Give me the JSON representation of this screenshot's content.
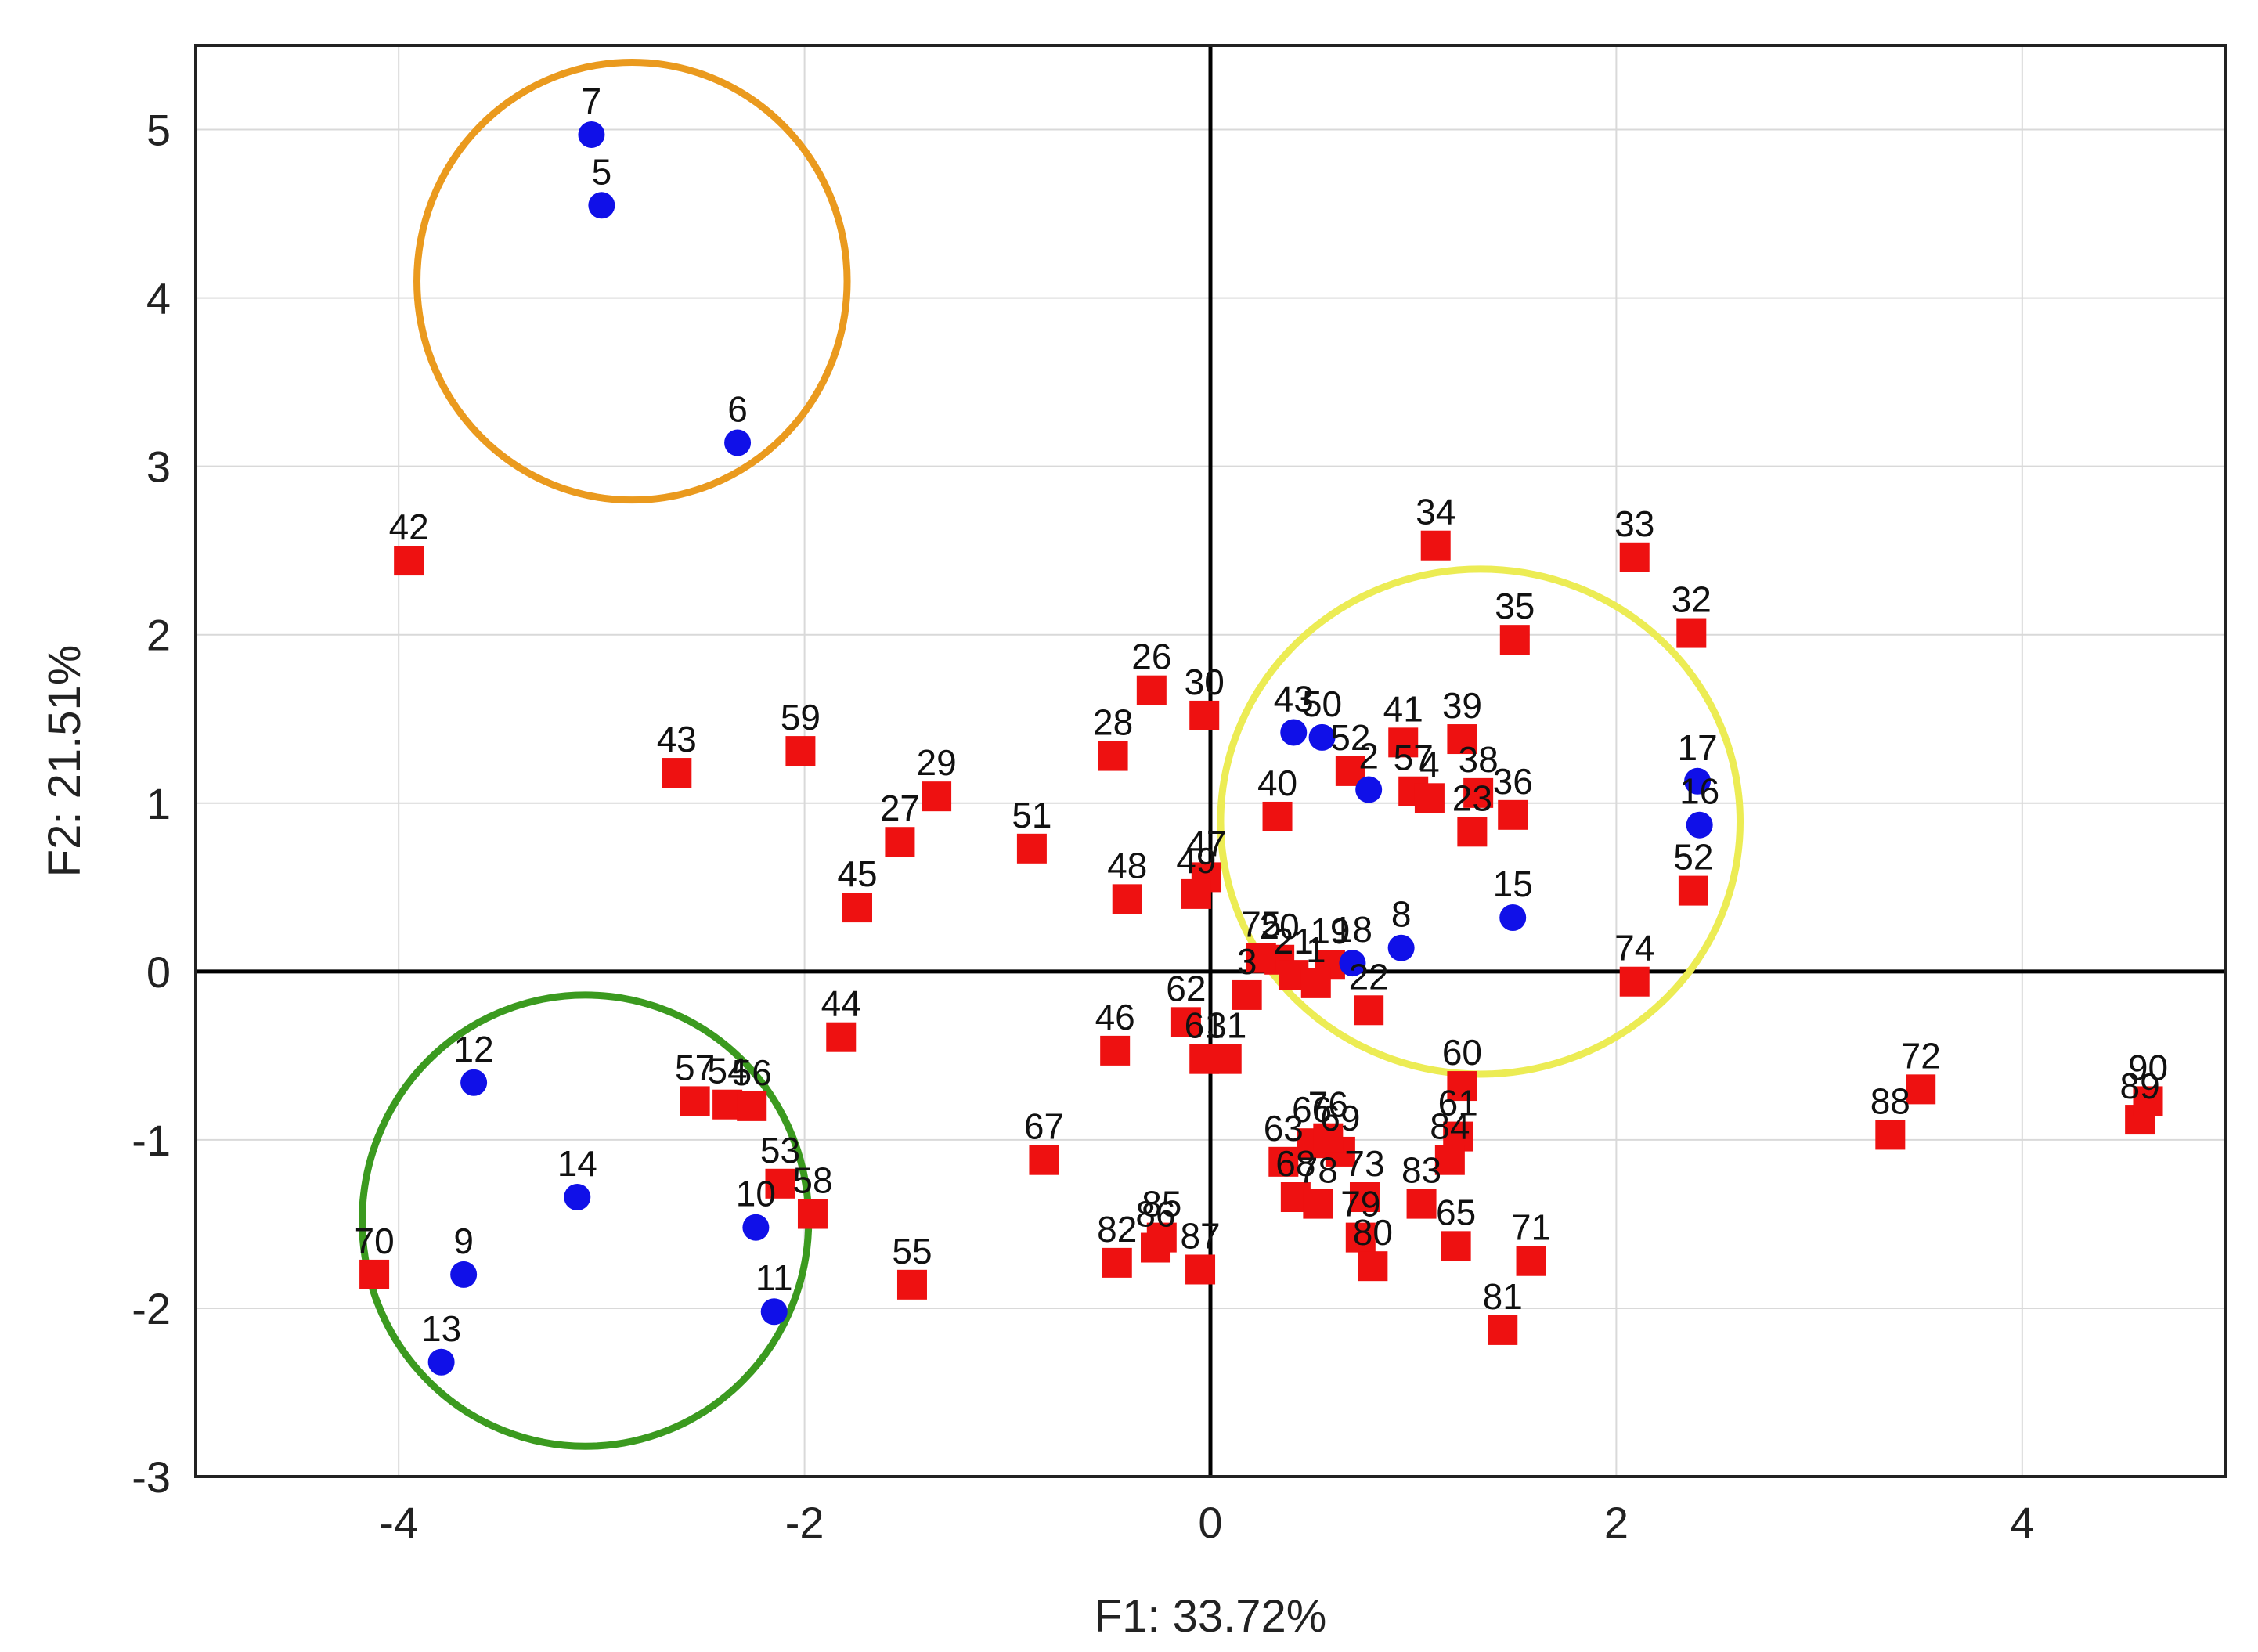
{
  "chart_data": {
    "type": "scatter",
    "title": "",
    "xlabel": "F1: 33.72%",
    "ylabel": "F2: 21.51%",
    "xlim": [
      -5,
      5
    ],
    "ylim": [
      -3,
      5.5
    ],
    "x_ticks": [
      -4,
      -2,
      0,
      2,
      4
    ],
    "y_ticks": [
      -3,
      -2,
      -1,
      0,
      1,
      2,
      3,
      4,
      5
    ],
    "grid": true,
    "colors": {
      "circle_series": "#1010e8",
      "square_series": "#ee1111"
    },
    "series": [
      {
        "name": "circles",
        "marker": "circle",
        "points": [
          {
            "label": "7",
            "x": -3.05,
            "y": 4.97
          },
          {
            "label": "5",
            "x": -3.0,
            "y": 4.55
          },
          {
            "label": "6",
            "x": -2.33,
            "y": 3.14
          },
          {
            "label": "12",
            "x": -3.63,
            "y": -0.66
          },
          {
            "label": "14",
            "x": -3.12,
            "y": -1.34
          },
          {
            "label": "9",
            "x": -3.68,
            "y": -1.8
          },
          {
            "label": "13",
            "x": -3.79,
            "y": -2.32
          },
          {
            "label": "10",
            "x": -2.24,
            "y": -1.52
          },
          {
            "label": "11",
            "x": -2.15,
            "y": -2.02
          },
          {
            "label": "43",
            "x": 0.41,
            "y": 1.42
          },
          {
            "label": "50",
            "x": 0.55,
            "y": 1.39
          },
          {
            "label": "2",
            "x": 0.78,
            "y": 1.08
          },
          {
            "label": "17",
            "x": 2.4,
            "y": 1.13
          },
          {
            "label": "16",
            "x": 2.41,
            "y": 0.87
          },
          {
            "label": "15",
            "x": 1.49,
            "y": 0.32
          },
          {
            "label": "18",
            "x": 0.7,
            "y": 0.05
          },
          {
            "label": "8",
            "x": 0.94,
            "y": 0.14
          }
        ]
      },
      {
        "name": "squares",
        "marker": "square",
        "points": [
          {
            "label": "42",
            "x": -3.95,
            "y": 2.44
          },
          {
            "label": "43",
            "x": -2.63,
            "y": 1.18
          },
          {
            "label": "59",
            "x": -2.02,
            "y": 1.31
          },
          {
            "label": "29",
            "x": -1.35,
            "y": 1.04
          },
          {
            "label": "27",
            "x": -1.53,
            "y": 0.77
          },
          {
            "label": "45",
            "x": -1.74,
            "y": 0.38
          },
          {
            "label": "51",
            "x": -0.88,
            "y": 0.73
          },
          {
            "label": "28",
            "x": -0.48,
            "y": 1.28
          },
          {
            "label": "26",
            "x": -0.29,
            "y": 1.67
          },
          {
            "label": "30",
            "x": -0.03,
            "y": 1.52
          },
          {
            "label": "48",
            "x": -0.41,
            "y": 0.43
          },
          {
            "label": "47",
            "x": -0.02,
            "y": 0.56
          },
          {
            "label": "49",
            "x": -0.07,
            "y": 0.46
          },
          {
            "label": "40",
            "x": 0.33,
            "y": 0.92
          },
          {
            "label": "41",
            "x": 0.95,
            "y": 1.36
          },
          {
            "label": "39",
            "x": 1.24,
            "y": 1.38
          },
          {
            "label": "34",
            "x": 1.11,
            "y": 2.53
          },
          {
            "label": "33",
            "x": 2.09,
            "y": 2.46
          },
          {
            "label": "35",
            "x": 1.5,
            "y": 1.97
          },
          {
            "label": "32",
            "x": 2.37,
            "y": 2.01
          },
          {
            "label": "52",
            "x": 0.69,
            "y": 1.19
          },
          {
            "label": "57",
            "x": 1.0,
            "y": 1.07
          },
          {
            "label": "4",
            "x": 1.08,
            "y": 1.03
          },
          {
            "label": "38",
            "x": 1.32,
            "y": 1.06
          },
          {
            "label": "36",
            "x": 1.49,
            "y": 0.93
          },
          {
            "label": "23",
            "x": 1.29,
            "y": 0.83
          },
          {
            "label": "52",
            "x": 2.38,
            "y": 0.48
          },
          {
            "label": "74",
            "x": 2.09,
            "y": -0.06
          },
          {
            "label": "20",
            "x": 0.34,
            "y": 0.07
          },
          {
            "label": "19",
            "x": 0.59,
            "y": 0.04
          },
          {
            "label": "21",
            "x": 0.41,
            "y": -0.02
          },
          {
            "label": "1",
            "x": 0.52,
            "y": -0.07
          },
          {
            "label": "75",
            "x": 0.25,
            "y": 0.08
          },
          {
            "label": "3",
            "x": 0.18,
            "y": -0.14
          },
          {
            "label": "22",
            "x": 0.78,
            "y": -0.23
          },
          {
            "label": "62",
            "x": -0.12,
            "y": -0.3
          },
          {
            "label": "61",
            "x": -0.03,
            "y": -0.52
          },
          {
            "label": "31",
            "x": 0.08,
            "y": -0.52
          },
          {
            "label": "46",
            "x": -0.47,
            "y": -0.47
          },
          {
            "label": "44",
            "x": -1.82,
            "y": -0.39
          },
          {
            "label": "57",
            "x": -2.54,
            "y": -0.77
          },
          {
            "label": "54",
            "x": -2.38,
            "y": -0.79
          },
          {
            "label": "56",
            "x": -2.26,
            "y": -0.8
          },
          {
            "label": "53",
            "x": -2.12,
            "y": -1.26
          },
          {
            "label": "58",
            "x": -1.96,
            "y": -1.44
          },
          {
            "label": "55",
            "x": -1.47,
            "y": -1.86
          },
          {
            "label": "67",
            "x": -0.82,
            "y": -1.12
          },
          {
            "label": "70",
            "x": -4.12,
            "y": -1.8
          },
          {
            "label": "82",
            "x": -0.46,
            "y": -1.73
          },
          {
            "label": "86",
            "x": -0.27,
            "y": -1.64
          },
          {
            "label": "85",
            "x": -0.24,
            "y": -1.58
          },
          {
            "label": "87",
            "x": -0.05,
            "y": -1.77
          },
          {
            "label": "60",
            "x": 1.24,
            "y": -0.68
          },
          {
            "label": "63",
            "x": 0.36,
            "y": -1.13
          },
          {
            "label": "66",
            "x": 0.5,
            "y": -1.02
          },
          {
            "label": "69",
            "x": 0.64,
            "y": -1.07
          },
          {
            "label": "76",
            "x": 0.58,
            "y": -0.99
          },
          {
            "label": "68",
            "x": 0.42,
            "y": -1.34
          },
          {
            "label": "78",
            "x": 0.53,
            "y": -1.38
          },
          {
            "label": "73",
            "x": 0.76,
            "y": -1.34
          },
          {
            "label": "79",
            "x": 0.74,
            "y": -1.58
          },
          {
            "label": "80",
            "x": 0.8,
            "y": -1.75
          },
          {
            "label": "83",
            "x": 1.04,
            "y": -1.38
          },
          {
            "label": "65",
            "x": 1.21,
            "y": -1.63
          },
          {
            "label": "61",
            "x": 1.22,
            "y": -0.98
          },
          {
            "label": "84",
            "x": 1.18,
            "y": -1.12
          },
          {
            "label": "71",
            "x": 1.58,
            "y": -1.72
          },
          {
            "label": "81",
            "x": 1.44,
            "y": -2.13
          },
          {
            "label": "88",
            "x": 3.35,
            "y": -0.97
          },
          {
            "label": "72",
            "x": 3.5,
            "y": -0.7
          },
          {
            "label": "89",
            "x": 4.58,
            "y": -0.88
          },
          {
            "label": "90",
            "x": 4.62,
            "y": -0.77
          }
        ]
      }
    ],
    "annotations": [
      {
        "type": "circle",
        "color": "#ea9a1e",
        "center": {
          "x": -2.85,
          "y": 4.1
        },
        "radius_x": 1.06,
        "radius_y": 1.3
      },
      {
        "type": "circle",
        "color": "#3b9a1f",
        "center": {
          "x": -3.08,
          "y": -1.48
        },
        "radius_x": 1.1,
        "radius_y": 1.34
      },
      {
        "type": "circle",
        "color": "#ecec54",
        "center": {
          "x": 1.33,
          "y": 0.89
        },
        "radius_x": 1.28,
        "radius_y": 1.5
      }
    ]
  }
}
